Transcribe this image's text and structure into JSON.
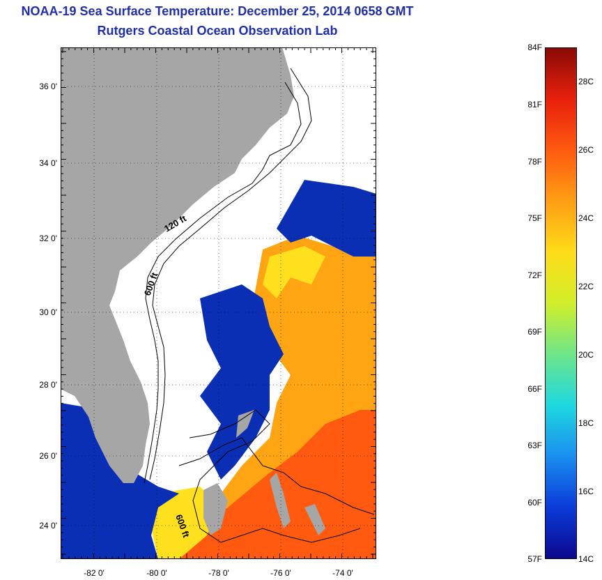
{
  "header": {
    "title": "NOAA-19 Sea Surface Temperature:  December 25, 2014 0658 GMT",
    "subtitle": "Rutgers Coastal Ocean Observation Lab"
  },
  "map": {
    "lat_labels": [
      "36 0'",
      "34 0'",
      "32 0'",
      "30 0'",
      "28 0'",
      "26 0'",
      "24 0'"
    ],
    "lon_labels": [
      "-82 0'",
      "-80 0'",
      "-78 0'",
      "-76 0'",
      "-74 0'"
    ],
    "contour_labels": [
      "120 ft",
      "600 ft",
      "600 ft"
    ],
    "colors": {
      "land": "#a6a6a6",
      "cloud": "#ffffff",
      "warm": "#ff5a10",
      "mid": "#ffa514",
      "yellow": "#ffe01e",
      "cool": "#0a2fb4"
    }
  },
  "colorbar": {
    "fahrenheit_labels": [
      "84F",
      "81F",
      "78F",
      "75F",
      "72F",
      "69F",
      "66F",
      "63F",
      "60F",
      "57F"
    ],
    "celsius_labels": [
      "28C",
      "26C",
      "24C",
      "22C",
      "20C",
      "18C",
      "16C",
      "14C"
    ],
    "stops": [
      "#0c0890",
      "#0a3bd8",
      "#1a8ef0",
      "#1ed8e0",
      "#6ee68a",
      "#d2ee2a",
      "#ffdc1a",
      "#ff9e14",
      "#ff5a10",
      "#e8200c",
      "#8a0a06"
    ]
  }
}
